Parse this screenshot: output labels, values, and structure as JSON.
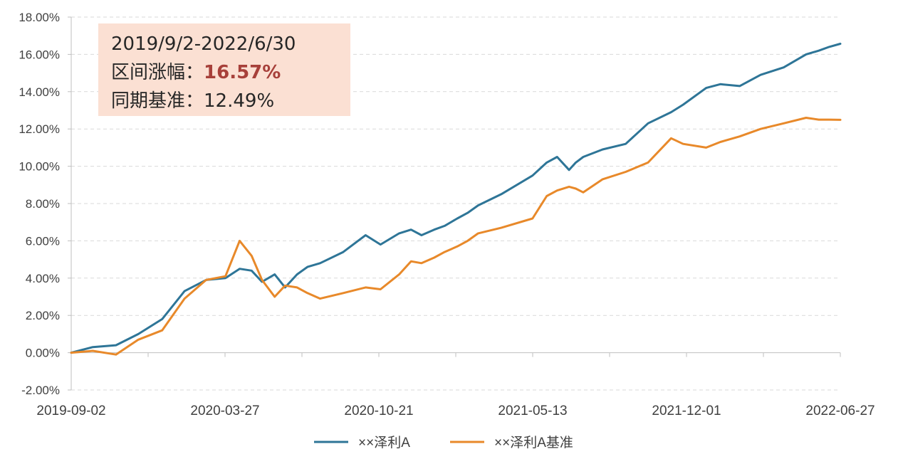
{
  "annotation": {
    "period": "2019/9/2-2022/6/30",
    "return_label": "区间涨幅：",
    "return_value": "16.57%",
    "benchmark_label": "同期基准：",
    "benchmark_value": "12.49%"
  },
  "chart_data": {
    "type": "line",
    "title": "",
    "xlabel": "",
    "ylabel": "",
    "ylim": [
      -2,
      18
    ],
    "y_ticks": [
      "-2.00%",
      "0.00%",
      "2.00%",
      "4.00%",
      "6.00%",
      "8.00%",
      "10.00%",
      "12.00%",
      "14.00%",
      "16.00%",
      "18.00%"
    ],
    "x_tick_labels": [
      "2019-09-02",
      "2020-03-27",
      "2020-10-21",
      "2021-05-13",
      "2021-12-01",
      "2022-06-27"
    ],
    "grid": "horizontal dashed",
    "legend_position": "bottom",
    "x": [
      "2019-09-02",
      "2019-10-01",
      "2019-11-01",
      "2019-12-01",
      "2020-01-02",
      "2020-02-01",
      "2020-03-01",
      "2020-03-27",
      "2020-04-15",
      "2020-05-01",
      "2020-05-15",
      "2020-06-01",
      "2020-06-15",
      "2020-07-01",
      "2020-07-15",
      "2020-08-01",
      "2020-09-01",
      "2020-10-01",
      "2020-10-21",
      "2020-11-15",
      "2020-12-01",
      "2020-12-15",
      "2021-01-01",
      "2021-01-15",
      "2021-02-01",
      "2021-02-15",
      "2021-03-01",
      "2021-04-01",
      "2021-05-13",
      "2021-06-01",
      "2021-06-15",
      "2021-07-01",
      "2021-07-10",
      "2021-07-20",
      "2021-08-15",
      "2021-09-15",
      "2021-10-15",
      "2021-11-15",
      "2021-12-01",
      "2022-01-01",
      "2022-01-20",
      "2022-02-15",
      "2022-03-15",
      "2022-04-15",
      "2022-05-15",
      "2022-06-01",
      "2022-06-15",
      "2022-06-30"
    ],
    "series": [
      {
        "name": "××泽利A",
        "color": "#2e7597",
        "values": [
          0.0,
          0.3,
          0.4,
          1.0,
          1.8,
          3.3,
          3.9,
          4.0,
          4.5,
          4.4,
          3.8,
          4.2,
          3.5,
          4.2,
          4.6,
          4.8,
          5.4,
          6.3,
          5.8,
          6.4,
          6.6,
          6.3,
          6.6,
          6.8,
          7.2,
          7.5,
          7.9,
          8.5,
          9.5,
          10.2,
          10.5,
          9.8,
          10.2,
          10.5,
          10.9,
          11.2,
          12.3,
          12.9,
          13.3,
          14.2,
          14.4,
          14.3,
          14.9,
          15.3,
          16.0,
          16.2,
          16.4,
          16.57
        ]
      },
      {
        "name": "××泽利A基准",
        "color": "#e8892a",
        "values": [
          0.0,
          0.1,
          -0.1,
          0.7,
          1.2,
          2.9,
          3.9,
          4.1,
          6.0,
          5.2,
          3.9,
          3.0,
          3.6,
          3.5,
          3.2,
          2.9,
          3.2,
          3.5,
          3.4,
          4.2,
          4.9,
          4.8,
          5.1,
          5.4,
          5.7,
          6.0,
          6.4,
          6.7,
          7.2,
          8.4,
          8.7,
          8.9,
          8.8,
          8.6,
          9.3,
          9.7,
          10.2,
          11.5,
          11.2,
          11.0,
          11.3,
          11.6,
          12.0,
          12.3,
          12.6,
          12.5,
          12.5,
          12.49
        ]
      }
    ]
  }
}
